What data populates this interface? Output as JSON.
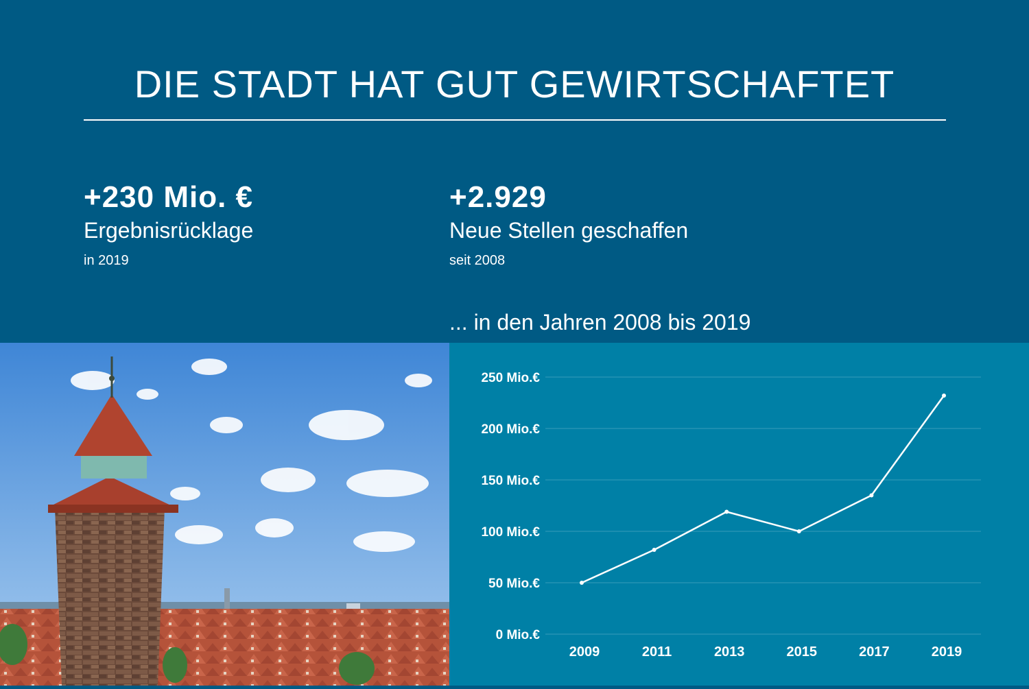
{
  "header": {
    "title": "DIE STADT HAT GUT GEWIRTSCHAFTET"
  },
  "stats": [
    {
      "value": "+230 Mio. €",
      "label": "Ergebnisrücklage",
      "sub": "in 2019"
    },
    {
      "value": "+2.929",
      "label": "Neue Stellen geschaffen",
      "sub": "seit 2008"
    }
  ],
  "chart_subtitle": "... in den Jahren 2008 bis 2019",
  "colors": {
    "background": "#005a84",
    "chart_panel": "#0080a6",
    "line": "#ffffff"
  },
  "chart_data": {
    "type": "line",
    "title": "",
    "xlabel": "",
    "ylabel": "",
    "categories": [
      "2009",
      "2011",
      "2013",
      "2015",
      "2017",
      "2019"
    ],
    "x_tick_labels": [
      "2009",
      "2011",
      "2013",
      "2015",
      "2017",
      "2019"
    ],
    "series": [
      {
        "values": [
          50,
          82,
          119,
          100,
          135,
          232
        ]
      }
    ],
    "ylim": [
      0,
      250
    ],
    "y_ticks": [
      0,
      50,
      100,
      150,
      200,
      250
    ],
    "y_tick_labels": [
      "0 Mio.€",
      "50 Mio.€",
      "100 Mio.€",
      "150 Mio.€",
      "200 Mio.€",
      "250 Mio.€"
    ],
    "grid": true,
    "legend": "none"
  }
}
